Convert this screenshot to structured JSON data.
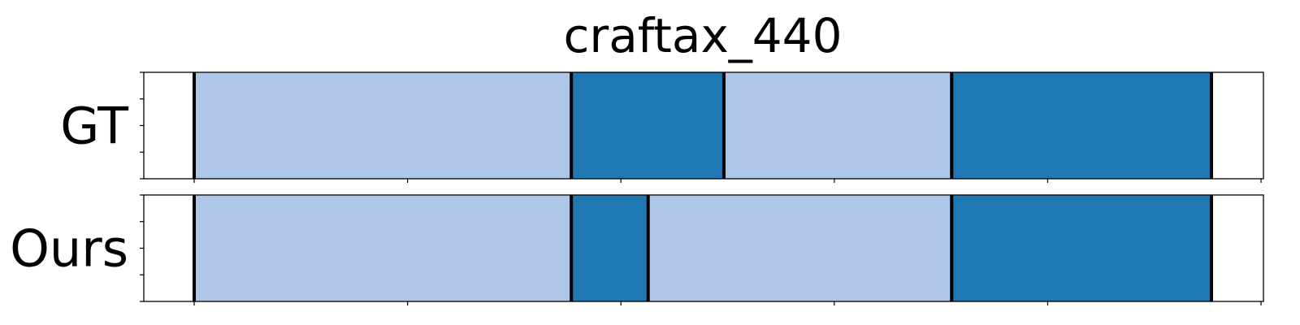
{
  "chart_data": {
    "type": "bar",
    "title": "craftax_440",
    "xlim": [
      0,
      1
    ],
    "colors": {
      "light": "#aec7e8",
      "dark": "#1f77b4",
      "boundary": "#000000",
      "frame": "#000000"
    },
    "rows": [
      {
        "label": "GT",
        "segments": [
          {
            "start": 0.0465,
            "end": 0.4,
            "color": "light"
          },
          {
            "start": 0.4,
            "end": 0.543,
            "color": "dark"
          },
          {
            "start": 0.543,
            "end": 0.7565,
            "color": "light"
          },
          {
            "start": 0.7565,
            "end": 1.0,
            "color": "dark"
          }
        ],
        "boundaries": [
          0.0465,
          0.4,
          0.543,
          0.7565,
          1.0
        ]
      },
      {
        "label": "Ours",
        "segments": [
          {
            "start": 0.0465,
            "end": 0.4,
            "color": "light"
          },
          {
            "start": 0.4,
            "end": 0.472,
            "color": "dark"
          },
          {
            "start": 0.472,
            "end": 0.7565,
            "color": "light"
          },
          {
            "start": 0.7565,
            "end": 1.0,
            "color": "dark"
          }
        ],
        "boundaries": [
          0.0465,
          0.4,
          0.472,
          0.7565,
          1.0
        ]
      }
    ],
    "x_ticks": [
      0.0465,
      0.2465,
      0.4465,
      0.6465,
      0.8465,
      1.0465
    ],
    "y_ticks": [
      0,
      0.25,
      0.5,
      0.75,
      1.0
    ]
  }
}
